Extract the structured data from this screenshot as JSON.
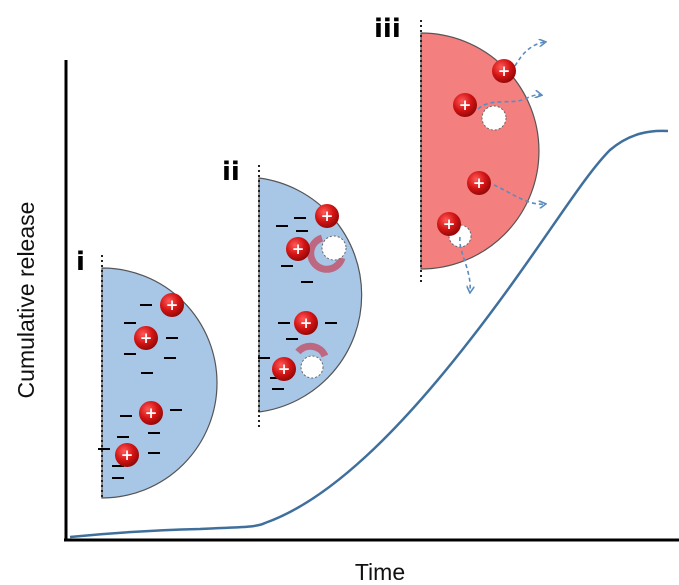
{
  "axes": {
    "x_label": "Time",
    "y_label": "Cumulative release"
  },
  "stages": [
    {
      "label": "i"
    },
    {
      "label": "ii"
    },
    {
      "label": "iii"
    }
  ],
  "symbols": {
    "cation": "+"
  },
  "colors": {
    "curve": "#3f6f9c",
    "loaded_particle": "#a8c6e6",
    "released_particle": "#f47f7f",
    "cation": "#d41414",
    "pore_ring": "#c2566e",
    "release_arrow": "#5b8cbf"
  }
}
